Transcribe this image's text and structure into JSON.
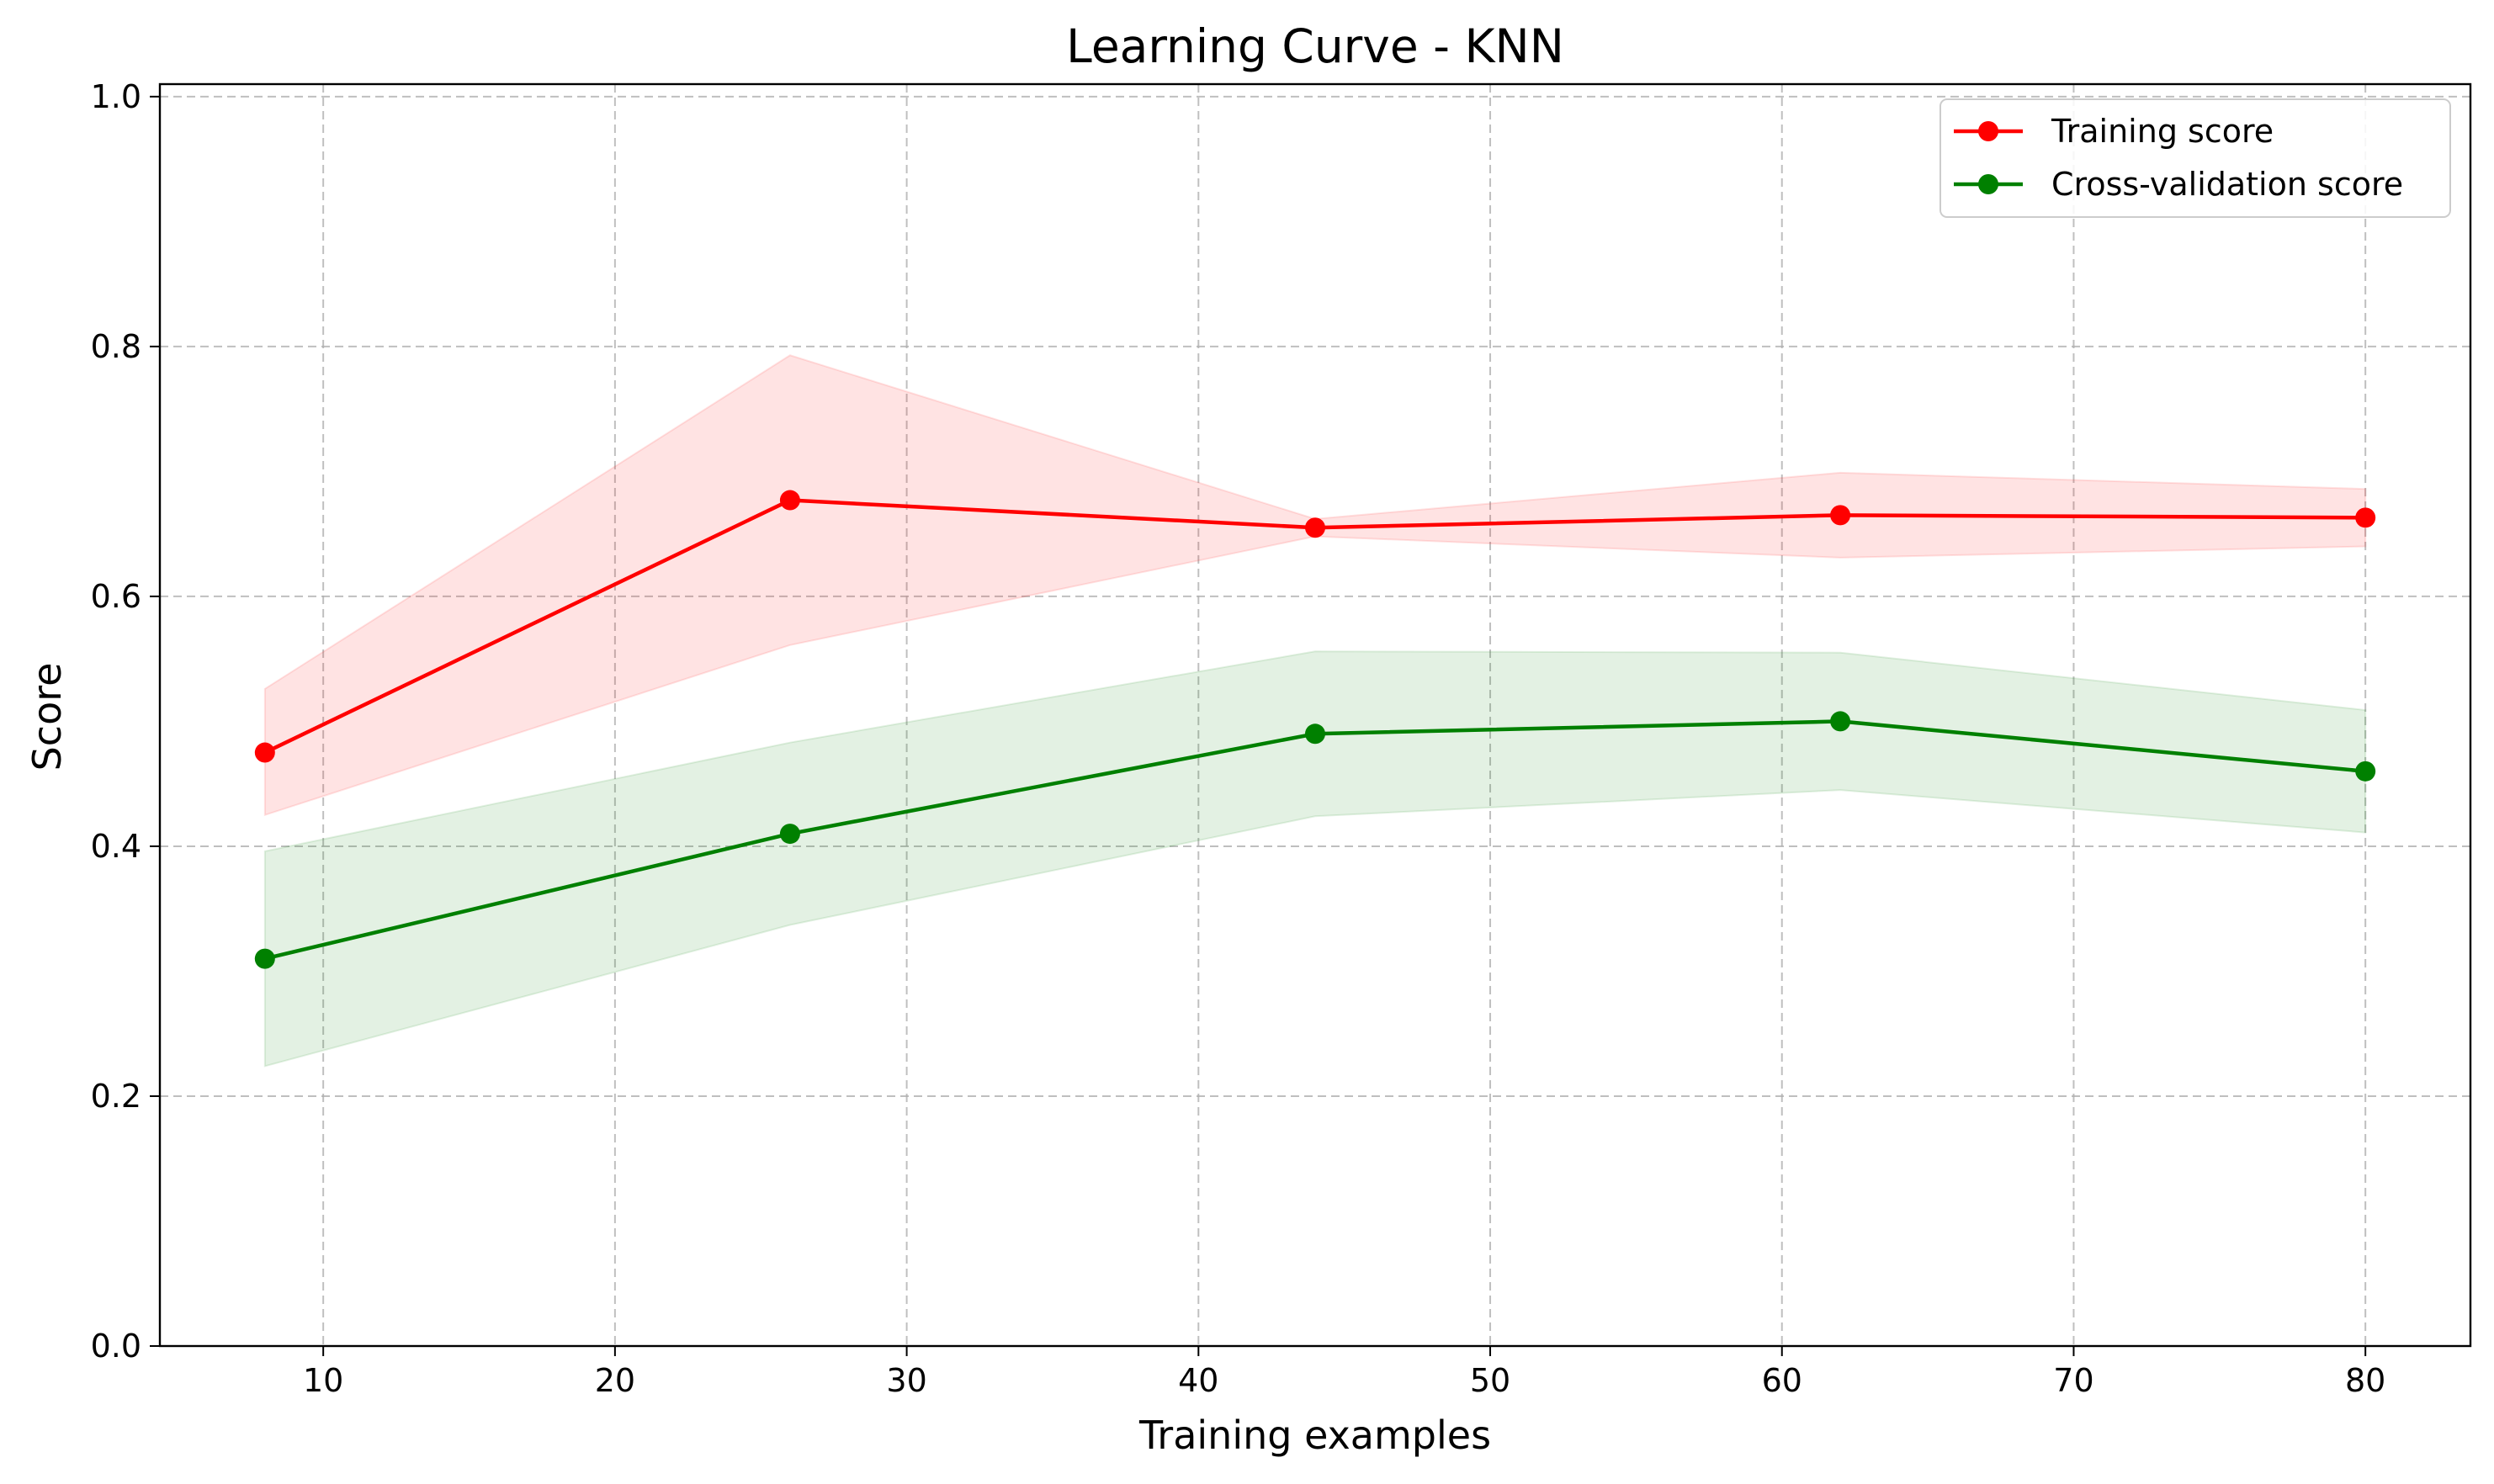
{
  "chart_data": {
    "type": "line",
    "title": "Learning Curve - KNN",
    "xlabel": "Training examples",
    "ylabel": "Score",
    "xlim": [
      4.4,
      83.6
    ],
    "ylim": [
      0.0,
      1.01
    ],
    "grid": true,
    "legend_position": "top-right",
    "x_ticks": [
      10,
      20,
      30,
      40,
      50,
      60,
      70,
      80
    ],
    "x_tick_labels": [
      "10",
      "20",
      "30",
      "40",
      "50",
      "60",
      "70",
      "80"
    ],
    "y_ticks": [
      0.0,
      0.2,
      0.4,
      0.6,
      0.8,
      1.0
    ],
    "y_tick_labels": [
      "0.0",
      "0.2",
      "0.4",
      "0.6",
      "0.8",
      "1.0"
    ],
    "x": [
      8,
      26,
      44,
      62,
      80
    ],
    "series": [
      {
        "name": "Training score",
        "color": "#ff0000",
        "band_color": "#ff0000",
        "values": [
          0.475,
          0.677,
          0.655,
          0.665,
          0.663
        ],
        "lower": [
          0.425,
          0.561,
          0.648,
          0.631,
          0.64
        ],
        "upper": [
          0.526,
          0.793,
          0.662,
          0.699,
          0.686
        ]
      },
      {
        "name": "Cross-validation score",
        "color": "#008000",
        "band_color": "#008000",
        "values": [
          0.31,
          0.41,
          0.49,
          0.5,
          0.46
        ],
        "lower": [
          0.224,
          0.337,
          0.424,
          0.445,
          0.411
        ],
        "upper": [
          0.396,
          0.483,
          0.556,
          0.555,
          0.509
        ]
      }
    ]
  }
}
